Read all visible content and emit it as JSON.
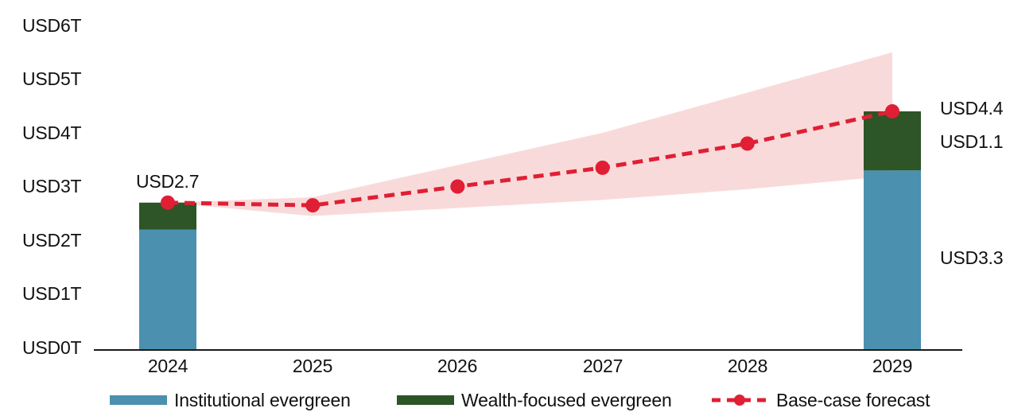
{
  "chart_data": {
    "type": "combo-stacked-bar-line-band",
    "title": "",
    "unit": "USD trillions",
    "categories": [
      "2024",
      "2025",
      "2026",
      "2027",
      "2028",
      "2029"
    ],
    "y_ticks": [
      "USD6T",
      "USD5T",
      "USD4T",
      "USD3T",
      "USD2T",
      "USD1T",
      "USD0T"
    ],
    "ylim": [
      0,
      6
    ],
    "grid": "off",
    "legend_position": "bottom",
    "bars": [
      {
        "category": "2024",
        "institutional": 2.2,
        "wealth": 0.5,
        "total": 2.7
      },
      {
        "category": "2029",
        "institutional": 3.3,
        "wealth": 1.1,
        "total": 4.4
      }
    ],
    "line": {
      "name": "Base-case forecast",
      "values": [
        2.7,
        2.65,
        3.0,
        3.35,
        3.8,
        4.4
      ]
    },
    "band": {
      "upper": [
        2.7,
        2.8,
        3.4,
        4.0,
        4.75,
        5.5
      ],
      "lower": [
        2.7,
        2.45,
        2.6,
        2.75,
        2.95,
        3.2
      ]
    },
    "labels": {
      "total_2024": "USD2.7",
      "total_2029": "USD4.4",
      "wealth_2029": "USD1.1",
      "institutional_2029": "USD3.3"
    },
    "colors": {
      "institutional": "#4B90AE",
      "wealth": "#2D5527",
      "forecast": "#E01F34",
      "band": "#F9DADA",
      "axis": "#1A1A1A",
      "text": "#111111"
    },
    "legend": [
      {
        "label": "Institutional evergreen",
        "type": "bar",
        "color_key": "institutional"
      },
      {
        "label": "Wealth-focused evergreen",
        "type": "bar",
        "color_key": "wealth"
      },
      {
        "label": "Base-case forecast",
        "type": "line",
        "color_key": "forecast"
      }
    ]
  }
}
